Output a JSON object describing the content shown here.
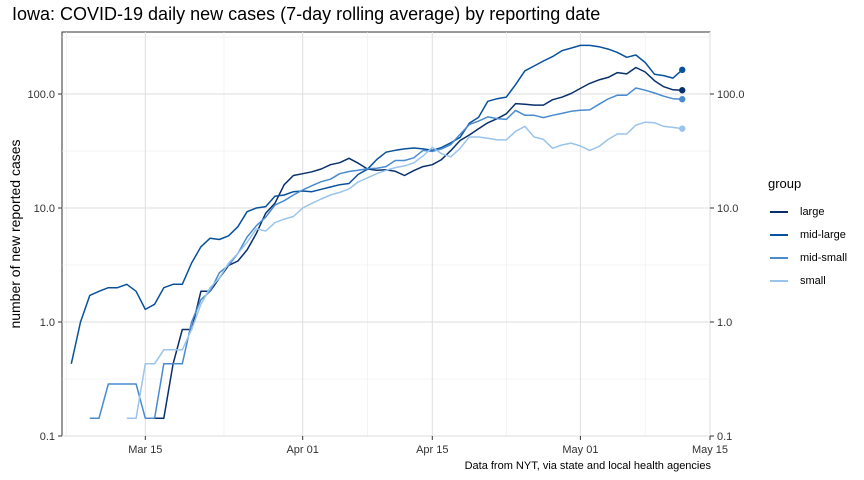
{
  "chart_data": {
    "type": "line",
    "title": "Iowa: COVID-19 daily new cases (7-day rolling average) by reporting date",
    "xlabel": "",
    "ylabel": "number of new reported cases",
    "caption": "Data from NYT, via state and local health agencies",
    "y_scale": "log10",
    "ylim": [
      0.1,
      350
    ],
    "xlim": [
      "2020-03-06",
      "2020-05-15"
    ],
    "x_ticks": [
      {
        "date": "2020-03-15",
        "label": "Mar 15"
      },
      {
        "date": "2020-04-01",
        "label": "Apr 01"
      },
      {
        "date": "2020-04-15",
        "label": "Apr 15"
      },
      {
        "date": "2020-05-01",
        "label": "May 01"
      },
      {
        "date": "2020-05-15",
        "label": "May 15"
      }
    ],
    "y_ticks": [
      {
        "value": 0.1,
        "label": "0.1"
      },
      {
        "value": 1,
        "label": "1.0"
      },
      {
        "value": 10,
        "label": "10.0"
      },
      {
        "value": 100,
        "label": "100.0"
      }
    ],
    "secondary_y_axis": true,
    "grid": true,
    "legend": {
      "title": "group",
      "position": "right"
    },
    "series": [
      {
        "name": "large",
        "color": "#08306b",
        "endpoint_marker": true,
        "points": [
          [
            "2020-03-15",
            0.143
          ],
          [
            "2020-03-16",
            0.143
          ],
          [
            "2020-03-17",
            0.143
          ],
          [
            "2020-03-18",
            0.43
          ],
          [
            "2020-03-19",
            0.86
          ],
          [
            "2020-03-20",
            0.86
          ],
          [
            "2020-03-21",
            1.86
          ],
          [
            "2020-03-22",
            1.86
          ],
          [
            "2020-03-23",
            2.43
          ],
          [
            "2020-03-24",
            3.14
          ],
          [
            "2020-03-25",
            3.43
          ],
          [
            "2020-03-26",
            4.29
          ],
          [
            "2020-03-27",
            6.0
          ],
          [
            "2020-03-28",
            9.0
          ],
          [
            "2020-03-29",
            11.0
          ],
          [
            "2020-03-30",
            16.0
          ],
          [
            "2020-03-31",
            19.3
          ],
          [
            "2020-04-01",
            20.0
          ],
          [
            "2020-04-02",
            20.8
          ],
          [
            "2020-04-03",
            22.0
          ],
          [
            "2020-04-04",
            24.0
          ],
          [
            "2020-04-05",
            25.0
          ],
          [
            "2020-04-06",
            27.3
          ],
          [
            "2020-04-07",
            24.7
          ],
          [
            "2020-04-08",
            22.0
          ],
          [
            "2020-04-09",
            21.4
          ],
          [
            "2020-04-10",
            21.7
          ],
          [
            "2020-04-11",
            21.0
          ],
          [
            "2020-04-12",
            19.3
          ],
          [
            "2020-04-13",
            21.3
          ],
          [
            "2020-04-14",
            23.1
          ],
          [
            "2020-04-15",
            24.0
          ],
          [
            "2020-04-16",
            26.6
          ],
          [
            "2020-04-17",
            31.9
          ],
          [
            "2020-04-18",
            39.1
          ],
          [
            "2020-04-19",
            43.7
          ],
          [
            "2020-04-20",
            49.6
          ],
          [
            "2020-04-21",
            55.9
          ],
          [
            "2020-04-22",
            60.7
          ],
          [
            "2020-04-23",
            67.0
          ],
          [
            "2020-04-24",
            82.4
          ],
          [
            "2020-04-25",
            81.3
          ],
          [
            "2020-04-26",
            79.9
          ],
          [
            "2020-04-27",
            79.9
          ],
          [
            "2020-04-28",
            89.1
          ],
          [
            "2020-04-29",
            93.7
          ],
          [
            "2020-04-30",
            101.0
          ],
          [
            "2020-05-01",
            112.0
          ],
          [
            "2020-05-02",
            124.0
          ],
          [
            "2020-05-03",
            133.0
          ],
          [
            "2020-05-04",
            140.0
          ],
          [
            "2020-05-05",
            154.0
          ],
          [
            "2020-05-06",
            150.0
          ],
          [
            "2020-05-07",
            171.0
          ],
          [
            "2020-05-08",
            156.0
          ],
          [
            "2020-05-09",
            131.0
          ],
          [
            "2020-05-10",
            116.0
          ],
          [
            "2020-05-11",
            109.0
          ],
          [
            "2020-05-12",
            108.0
          ]
        ]
      },
      {
        "name": "mid-large",
        "color": "#08519c",
        "endpoint_marker": true,
        "points": [
          [
            "2020-03-07",
            0.43
          ],
          [
            "2020-03-08",
            1.0
          ],
          [
            "2020-03-09",
            1.71
          ],
          [
            "2020-03-10",
            1.86
          ],
          [
            "2020-03-11",
            2.0
          ],
          [
            "2020-03-12",
            2.0
          ],
          [
            "2020-03-13",
            2.14
          ],
          [
            "2020-03-14",
            1.86
          ],
          [
            "2020-03-15",
            1.29
          ],
          [
            "2020-03-16",
            1.43
          ],
          [
            "2020-03-17",
            2.0
          ],
          [
            "2020-03-18",
            2.14
          ],
          [
            "2020-03-19",
            2.14
          ],
          [
            "2020-03-20",
            3.29
          ],
          [
            "2020-03-21",
            4.57
          ],
          [
            "2020-03-22",
            5.43
          ],
          [
            "2020-03-23",
            5.29
          ],
          [
            "2020-03-24",
            5.71
          ],
          [
            "2020-03-25",
            6.86
          ],
          [
            "2020-03-26",
            9.29
          ],
          [
            "2020-03-27",
            10.0
          ],
          [
            "2020-03-28",
            10.3
          ],
          [
            "2020-03-29",
            12.7
          ],
          [
            "2020-03-30",
            13.0
          ],
          [
            "2020-03-31",
            13.9
          ],
          [
            "2020-04-01",
            14.1
          ],
          [
            "2020-04-02",
            13.9
          ],
          [
            "2020-04-03",
            14.6
          ],
          [
            "2020-04-04",
            15.3
          ],
          [
            "2020-04-05",
            16.0
          ],
          [
            "2020-04-06",
            16.4
          ],
          [
            "2020-04-07",
            19.7
          ],
          [
            "2020-04-08",
            21.9
          ],
          [
            "2020-04-09",
            26.6
          ],
          [
            "2020-04-10",
            30.9
          ],
          [
            "2020-04-11",
            32.1
          ],
          [
            "2020-04-12",
            33.0
          ],
          [
            "2020-04-13",
            33.6
          ],
          [
            "2020-04-14",
            33.0
          ],
          [
            "2020-04-15",
            32.1
          ],
          [
            "2020-04-16",
            33.9
          ],
          [
            "2020-04-17",
            37.3
          ],
          [
            "2020-04-18",
            41.6
          ],
          [
            "2020-04-19",
            55.3
          ],
          [
            "2020-04-20",
            62.6
          ],
          [
            "2020-04-21",
            86.4
          ],
          [
            "2020-04-22",
            91.0
          ],
          [
            "2020-04-23",
            94.0
          ],
          [
            "2020-04-24",
            121.0
          ],
          [
            "2020-04-25",
            160.0
          ],
          [
            "2020-04-26",
            176.0
          ],
          [
            "2020-04-27",
            195.0
          ],
          [
            "2020-04-28",
            213.0
          ],
          [
            "2020-04-29",
            240.0
          ],
          [
            "2020-04-30",
            253.0
          ],
          [
            "2020-05-01",
            267.0
          ],
          [
            "2020-05-02",
            267.0
          ],
          [
            "2020-05-03",
            260.0
          ],
          [
            "2020-05-04",
            248.0
          ],
          [
            "2020-05-05",
            232.0
          ],
          [
            "2020-05-06",
            210.0
          ],
          [
            "2020-05-07",
            220.0
          ],
          [
            "2020-05-08",
            189.0
          ],
          [
            "2020-05-09",
            149.0
          ],
          [
            "2020-05-10",
            145.0
          ],
          [
            "2020-05-11",
            138.0
          ],
          [
            "2020-05-12",
            163.0
          ]
        ]
      },
      {
        "name": "mid-small",
        "color": "#4a8bd0",
        "endpoint_marker": true,
        "points": [
          [
            "2020-03-09",
            0.143
          ],
          [
            "2020-03-10",
            0.143
          ],
          [
            "2020-03-11",
            0.286
          ],
          [
            "2020-03-12",
            0.286
          ],
          [
            "2020-03-13",
            0.286
          ],
          [
            "2020-03-14",
            0.286
          ],
          [
            "2020-03-15",
            0.143
          ],
          [
            "2020-03-16",
            0.143
          ],
          [
            "2020-03-17",
            0.43
          ],
          [
            "2020-03-18",
            0.43
          ],
          [
            "2020-03-19",
            0.43
          ],
          [
            "2020-03-20",
            1.0
          ],
          [
            "2020-03-21",
            1.57
          ],
          [
            "2020-03-22",
            1.86
          ],
          [
            "2020-03-23",
            2.71
          ],
          [
            "2020-03-24",
            3.14
          ],
          [
            "2020-03-25",
            4.0
          ],
          [
            "2020-03-26",
            5.57
          ],
          [
            "2020-03-27",
            7.0
          ],
          [
            "2020-03-28",
            8.3
          ],
          [
            "2020-03-29",
            10.6
          ],
          [
            "2020-03-30",
            11.6
          ],
          [
            "2020-03-31",
            13.0
          ],
          [
            "2020-04-01",
            14.4
          ],
          [
            "2020-04-02",
            15.7
          ],
          [
            "2020-04-03",
            17.0
          ],
          [
            "2020-04-04",
            17.9
          ],
          [
            "2020-04-05",
            20.0
          ],
          [
            "2020-04-06",
            20.9
          ],
          [
            "2020-04-07",
            21.4
          ],
          [
            "2020-04-08",
            22.1
          ],
          [
            "2020-04-09",
            22.3
          ],
          [
            "2020-04-10",
            23.1
          ],
          [
            "2020-04-11",
            26.1
          ],
          [
            "2020-04-12",
            26.1
          ],
          [
            "2020-04-13",
            27.6
          ],
          [
            "2020-04-14",
            32.0
          ],
          [
            "2020-04-15",
            31.4
          ],
          [
            "2020-04-16",
            33.0
          ],
          [
            "2020-04-17",
            36.0
          ],
          [
            "2020-04-18",
            44.3
          ],
          [
            "2020-04-19",
            53.9
          ],
          [
            "2020-04-20",
            57.9
          ],
          [
            "2020-04-21",
            63.0
          ],
          [
            "2020-04-22",
            60.9
          ],
          [
            "2020-04-23",
            59.9
          ],
          [
            "2020-04-24",
            71.9
          ],
          [
            "2020-04-25",
            65.0
          ],
          [
            "2020-04-26",
            65.0
          ],
          [
            "2020-04-27",
            62.1
          ],
          [
            "2020-04-28",
            65.0
          ],
          [
            "2020-04-29",
            67.6
          ],
          [
            "2020-04-30",
            70.6
          ],
          [
            "2020-05-01",
            72.0
          ],
          [
            "2020-05-02",
            72.6
          ],
          [
            "2020-05-03",
            81.3
          ],
          [
            "2020-05-04",
            90.6
          ],
          [
            "2020-05-05",
            97.6
          ],
          [
            "2020-05-06",
            97.6
          ],
          [
            "2020-05-07",
            113.0
          ],
          [
            "2020-05-08",
            108.0
          ],
          [
            "2020-05-09",
            102.0
          ],
          [
            "2020-05-10",
            95.7
          ],
          [
            "2020-05-11",
            91.0
          ],
          [
            "2020-05-12",
            90.0
          ]
        ]
      },
      {
        "name": "small",
        "color": "#9ac4eb",
        "endpoint_marker": true,
        "points": [
          [
            "2020-03-13",
            0.143
          ],
          [
            "2020-03-14",
            0.143
          ],
          [
            "2020-03-15",
            0.43
          ],
          [
            "2020-03-16",
            0.43
          ],
          [
            "2020-03-17",
            0.57
          ],
          [
            "2020-03-18",
            0.57
          ],
          [
            "2020-03-19",
            0.57
          ],
          [
            "2020-03-20",
            0.86
          ],
          [
            "2020-03-21",
            1.43
          ],
          [
            "2020-03-22",
            2.0
          ],
          [
            "2020-03-23",
            2.43
          ],
          [
            "2020-03-24",
            3.29
          ],
          [
            "2020-03-25",
            4.0
          ],
          [
            "2020-03-26",
            5.0
          ],
          [
            "2020-03-27",
            6.57
          ],
          [
            "2020-03-28",
            6.29
          ],
          [
            "2020-03-29",
            7.43
          ],
          [
            "2020-03-30",
            8.0
          ],
          [
            "2020-03-31",
            8.43
          ],
          [
            "2020-04-01",
            10.0
          ],
          [
            "2020-04-02",
            11.0
          ],
          [
            "2020-04-03",
            12.0
          ],
          [
            "2020-04-04",
            13.0
          ],
          [
            "2020-04-05",
            13.7
          ],
          [
            "2020-04-06",
            14.7
          ],
          [
            "2020-04-07",
            16.9
          ],
          [
            "2020-04-08",
            18.4
          ],
          [
            "2020-04-09",
            20.0
          ],
          [
            "2020-04-10",
            21.4
          ],
          [
            "2020-04-11",
            22.6
          ],
          [
            "2020-04-12",
            23.4
          ],
          [
            "2020-04-13",
            24.9
          ],
          [
            "2020-04-14",
            28.6
          ],
          [
            "2020-04-15",
            34.0
          ],
          [
            "2020-04-16",
            30.0
          ],
          [
            "2020-04-17",
            28.1
          ],
          [
            "2020-04-18",
            33.4
          ],
          [
            "2020-04-19",
            42.0
          ],
          [
            "2020-04-20",
            42.0
          ],
          [
            "2020-04-21",
            41.0
          ],
          [
            "2020-04-22",
            39.6
          ],
          [
            "2020-04-23",
            39.6
          ],
          [
            "2020-04-24",
            47.1
          ],
          [
            "2020-04-25",
            52.0
          ],
          [
            "2020-04-26",
            42.0
          ],
          [
            "2020-04-27",
            40.0
          ],
          [
            "2020-04-28",
            33.4
          ],
          [
            "2020-04-29",
            35.7
          ],
          [
            "2020-04-30",
            37.1
          ],
          [
            "2020-05-01",
            35.0
          ],
          [
            "2020-05-02",
            32.0
          ],
          [
            "2020-05-03",
            34.6
          ],
          [
            "2020-05-04",
            40.0
          ],
          [
            "2020-05-05",
            44.6
          ],
          [
            "2020-05-06",
            44.6
          ],
          [
            "2020-05-07",
            53.4
          ],
          [
            "2020-05-08",
            56.6
          ],
          [
            "2020-05-09",
            56.0
          ],
          [
            "2020-05-10",
            52.0
          ],
          [
            "2020-05-11",
            51.0
          ],
          [
            "2020-05-12",
            49.7
          ]
        ]
      }
    ]
  }
}
